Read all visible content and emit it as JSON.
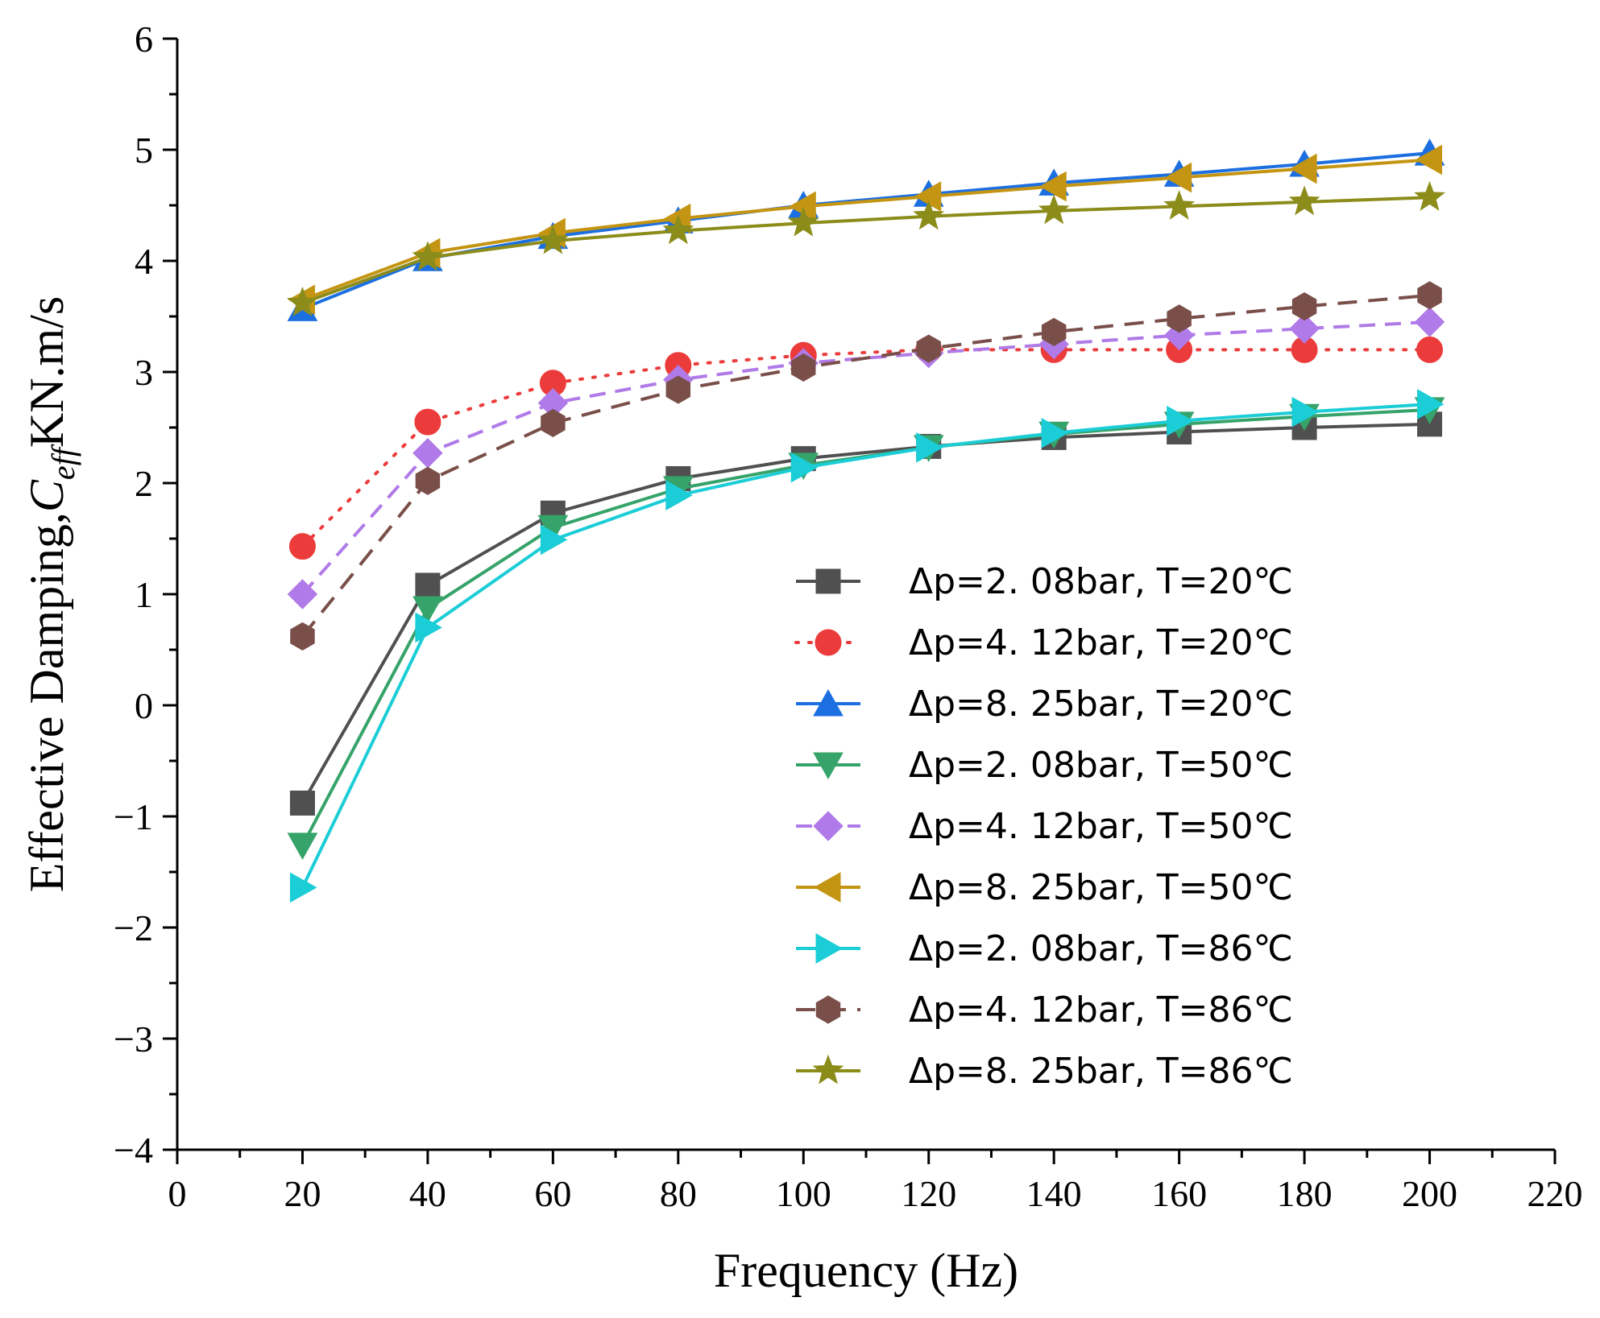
{
  "chart_data": {
    "type": "line",
    "title": "",
    "xlabel": "Frequency (Hz)",
    "ylabel": {
      "prefix": "Effective Damping,",
      "symbol": "C",
      "subscript": "eff",
      "unit": "KN.m/s"
    },
    "xlim": [
      0,
      220
    ],
    "ylim": [
      -4,
      6
    ],
    "x_ticks": [
      0,
      20,
      40,
      60,
      80,
      100,
      120,
      140,
      160,
      180,
      200,
      220
    ],
    "x_tick_labels": [
      "0",
      "20",
      "40",
      "60",
      "80",
      "100",
      "120",
      "140",
      "160",
      "180",
      "200",
      "220"
    ],
    "y_ticks": [
      -4,
      -3,
      -2,
      -1,
      0,
      1,
      2,
      3,
      4,
      5,
      6
    ],
    "y_tick_labels": [
      "−4",
      "−3",
      "−2",
      "−1",
      "0",
      "1",
      "2",
      "3",
      "4",
      "5",
      "6"
    ],
    "grid": false,
    "legend_position": "center-right",
    "x": [
      20,
      40,
      60,
      80,
      100,
      120,
      140,
      160,
      180,
      200
    ],
    "series": [
      {
        "name": "Δp=2. 08bar, T=20℃",
        "color": "#505050",
        "dash": "solid",
        "marker": "square",
        "values": [
          -0.88,
          1.08,
          1.73,
          2.04,
          2.22,
          2.33,
          2.41,
          2.46,
          2.5,
          2.53
        ]
      },
      {
        "name": "Δp=4. 12bar, T=20℃",
        "color": "#ec3b3b",
        "dash": "dot",
        "marker": "circle",
        "values": [
          1.43,
          2.55,
          2.9,
          3.06,
          3.15,
          3.2,
          3.2,
          3.2,
          3.2,
          3.2
        ]
      },
      {
        "name": "Δp=8. 25bar, T=20℃",
        "color": "#1c6fe0",
        "dash": "solid",
        "marker": "triangle-up",
        "values": [
          3.57,
          4.02,
          4.22,
          4.36,
          4.5,
          4.6,
          4.7,
          4.78,
          4.87,
          4.97
        ]
      },
      {
        "name": "Δp=2. 08bar, T=50℃",
        "color": "#36a36a",
        "dash": "solid",
        "marker": "triangle-down",
        "values": [
          -1.26,
          0.87,
          1.6,
          1.95,
          2.16,
          2.32,
          2.44,
          2.53,
          2.6,
          2.66
        ]
      },
      {
        "name": "Δp=4. 12bar, T=50℃",
        "color": "#b07ae8",
        "dash": "dash",
        "marker": "diamond",
        "values": [
          1.0,
          2.27,
          2.72,
          2.93,
          3.08,
          3.17,
          3.25,
          3.33,
          3.39,
          3.45
        ]
      },
      {
        "name": "Δp=8. 25bar, T=50℃",
        "color": "#c49512",
        "dash": "solid",
        "marker": "triangle-left",
        "values": [
          3.65,
          4.07,
          4.25,
          4.38,
          4.49,
          4.58,
          4.67,
          4.75,
          4.83,
          4.91
        ]
      },
      {
        "name": "Δp=2. 08bar, T=86℃",
        "color": "#1bcdd6",
        "dash": "solid",
        "marker": "triangle-right",
        "values": [
          -1.64,
          0.7,
          1.49,
          1.89,
          2.14,
          2.32,
          2.45,
          2.56,
          2.64,
          2.71
        ]
      },
      {
        "name": "Δp=4. 12bar, T=86℃",
        "color": "#7a4f4a",
        "dash": "longdash",
        "marker": "hexagon",
        "values": [
          0.62,
          2.02,
          2.54,
          2.84,
          3.04,
          3.21,
          3.36,
          3.48,
          3.59,
          3.69
        ]
      },
      {
        "name": "Δp=8. 25bar, T=86℃",
        "color": "#8c8c1a",
        "dash": "solid",
        "marker": "star",
        "values": [
          3.62,
          4.03,
          4.18,
          4.27,
          4.34,
          4.4,
          4.45,
          4.49,
          4.53,
          4.57
        ]
      }
    ]
  }
}
